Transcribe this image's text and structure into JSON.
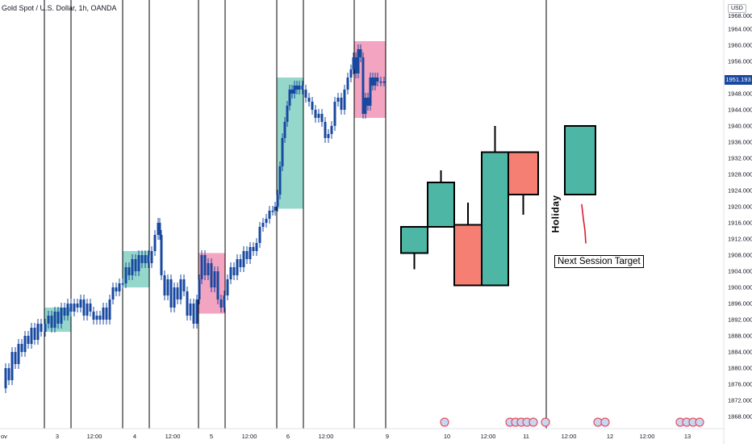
{
  "header": {
    "symbol_line": "Gold Spot / U.S. Dollar, 1h, OANDA",
    "currency": "USD"
  },
  "price_axis": {
    "last_price": "1951.193",
    "last_price_color": "#1848a0",
    "top_partial_label": "1968.000"
  },
  "annotations": {
    "holiday": "Holiday",
    "next_session_target": "Next Session Target"
  },
  "colors": {
    "bull_box": "#8fd6c8",
    "bear_box": "#f29fbd",
    "price_bars": "#1848a0",
    "projection_bull": "#4db6a5",
    "projection_bear": "#f57f73",
    "target_line": "#e01b2a"
  },
  "chart_data": {
    "type": "candlestick",
    "title": "Gold Spot / U.S. Dollar, 1h, OANDA",
    "ylim": [
      1867,
      1968
    ],
    "y_ticks": [
      1868,
      1872,
      1876,
      1880,
      1884,
      1888,
      1892,
      1896,
      1900,
      1904,
      1908,
      1912,
      1916,
      1920,
      1924,
      1928,
      1932,
      1936,
      1940,
      1944,
      1948,
      1952,
      1956,
      1960,
      1964
    ],
    "y_tick_labels": [
      "1868.000",
      "1872.000",
      "1876.000",
      "1880.000",
      "1884.000",
      "1888.000",
      "1892.000",
      "1896.000",
      "1900.000",
      "1904.000",
      "1908.000",
      "1912.000",
      "1916.000",
      "1920.000",
      "1924.000",
      "1928.000",
      "1932.000",
      "1936.000",
      "1940.000",
      "1944.000",
      "1948.000",
      "1952.000",
      "1956.000",
      "1960.000",
      "1964.000"
    ],
    "x_tick_labels": [
      "ov",
      "3",
      "12:00",
      "4",
      "12:00",
      "5",
      "12:00",
      "6",
      "12:00",
      "9",
      "10",
      "12:00",
      "11",
      "12:00",
      "12",
      "12:00",
      "13"
    ],
    "session_dividers": [
      55,
      88,
      152,
      185,
      246,
      279,
      343,
      376,
      439,
      478,
      677
    ],
    "session_boxes": [
      {
        "kind": "bull",
        "x0": 55,
        "x1": 88,
        "low": 1889,
        "high": 1895
      },
      {
        "kind": "bull",
        "x0": 152,
        "x1": 185,
        "low": 1900,
        "high": 1909
      },
      {
        "kind": "bear",
        "x0": 246,
        "x1": 279,
        "low": 1893.5,
        "high": 1908.5
      },
      {
        "kind": "bull",
        "x0": 343,
        "x1": 376,
        "low": 1919.5,
        "high": 1952
      },
      {
        "kind": "bear",
        "x0": 439,
        "x1": 478,
        "low": 1942,
        "high": 1961
      }
    ],
    "price_path": [
      [
        3,
        1875
      ],
      [
        7,
        1880
      ],
      [
        11,
        1877
      ],
      [
        15,
        1884
      ],
      [
        19,
        1881
      ],
      [
        23,
        1886
      ],
      [
        27,
        1884
      ],
      [
        31,
        1888
      ],
      [
        35,
        1886
      ],
      [
        39,
        1890
      ],
      [
        43,
        1887
      ],
      [
        47,
        1891
      ],
      [
        51,
        1889
      ],
      [
        56,
        1891
      ],
      [
        60,
        1893
      ],
      [
        64,
        1890
      ],
      [
        68,
        1894
      ],
      [
        72,
        1891
      ],
      [
        76,
        1895
      ],
      [
        80,
        1893
      ],
      [
        84,
        1896
      ],
      [
        88,
        1894
      ],
      [
        92,
        1896
      ],
      [
        96,
        1895
      ],
      [
        100,
        1897
      ],
      [
        104,
        1893
      ],
      [
        108,
        1896
      ],
      [
        112,
        1894
      ],
      [
        116,
        1892
      ],
      [
        120,
        1893
      ],
      [
        124,
        1892
      ],
      [
        128,
        1895
      ],
      [
        132,
        1892
      ],
      [
        136,
        1897
      ],
      [
        140,
        1900
      ],
      [
        144,
        1899
      ],
      [
        148,
        1901
      ],
      [
        152,
        1901
      ],
      [
        156,
        1905
      ],
      [
        160,
        1903
      ],
      [
        164,
        1907
      ],
      [
        168,
        1904
      ],
      [
        172,
        1908
      ],
      [
        176,
        1906
      ],
      [
        180,
        1908
      ],
      [
        184,
        1906
      ],
      [
        188,
        1909
      ],
      [
        192,
        1913
      ],
      [
        196,
        1916
      ],
      [
        198,
        1913
      ],
      [
        200,
        1903
      ],
      [
        204,
        1898
      ],
      [
        208,
        1902
      ],
      [
        212,
        1895
      ],
      [
        216,
        1900
      ],
      [
        220,
        1897
      ],
      [
        224,
        1902
      ],
      [
        228,
        1899
      ],
      [
        232,
        1893
      ],
      [
        236,
        1896
      ],
      [
        240,
        1891
      ],
      [
        244,
        1897
      ],
      [
        247,
        1902
      ],
      [
        250,
        1908
      ],
      [
        254,
        1903
      ],
      [
        258,
        1906
      ],
      [
        262,
        1900
      ],
      [
        266,
        1904
      ],
      [
        270,
        1897
      ],
      [
        274,
        1895
      ],
      [
        278,
        1898
      ],
      [
        282,
        1902
      ],
      [
        286,
        1905
      ],
      [
        290,
        1903
      ],
      [
        294,
        1907
      ],
      [
        298,
        1905
      ],
      [
        302,
        1909
      ],
      [
        306,
        1907
      ],
      [
        310,
        1910
      ],
      [
        314,
        1909
      ],
      [
        318,
        1911
      ],
      [
        322,
        1915
      ],
      [
        326,
        1916
      ],
      [
        330,
        1917
      ],
      [
        334,
        1919
      ],
      [
        338,
        1919
      ],
      [
        341,
        1920
      ],
      [
        344,
        1923
      ],
      [
        347,
        1930
      ],
      [
        350,
        1937
      ],
      [
        353,
        1941
      ],
      [
        356,
        1945
      ],
      [
        359,
        1949
      ],
      [
        362,
        1948
      ],
      [
        365,
        1950
      ],
      [
        368,
        1949
      ],
      [
        371,
        1950
      ],
      [
        375,
        1949
      ],
      [
        379,
        1947
      ],
      [
        383,
        1946
      ],
      [
        387,
        1944
      ],
      [
        391,
        1942
      ],
      [
        395,
        1943
      ],
      [
        399,
        1941
      ],
      [
        403,
        1937
      ],
      [
        407,
        1938
      ],
      [
        411,
        1940
      ],
      [
        415,
        1946
      ],
      [
        419,
        1947
      ],
      [
        423,
        1944
      ],
      [
        427,
        1949
      ],
      [
        431,
        1952
      ],
      [
        435,
        1954
      ],
      [
        438,
        1957
      ],
      [
        441,
        1953
      ],
      [
        444,
        1959
      ],
      [
        447,
        1957
      ],
      [
        450,
        1943
      ],
      [
        453,
        1947
      ],
      [
        456,
        1945
      ],
      [
        459,
        1952
      ],
      [
        462,
        1950
      ],
      [
        465,
        1952
      ],
      [
        468,
        1951
      ],
      [
        472,
        1951
      ],
      [
        476,
        1951
      ]
    ],
    "projection_candles": [
      {
        "x0": 497,
        "x1": 530,
        "open": 1908.5,
        "close": 1915,
        "high": 1915,
        "low": 1904.5,
        "dir": "up"
      },
      {
        "x0": 530,
        "x1": 563,
        "open": 1915,
        "close": 1926,
        "high": 1929,
        "low": 1915,
        "dir": "up"
      },
      {
        "x0": 563,
        "x1": 597,
        "open": 1915.5,
        "close": 1900.5,
        "high": 1921,
        "low": 1900.5,
        "dir": "down"
      },
      {
        "x0": 597,
        "x1": 630,
        "open": 1900.5,
        "close": 1933.5,
        "high": 1940,
        "low": 1900.5,
        "dir": "up"
      },
      {
        "x0": 630,
        "x1": 667,
        "open": 1933.5,
        "close": 1923,
        "high": 1933.5,
        "low": 1918,
        "dir": "down"
      },
      {
        "x0": 700,
        "x1": 738,
        "open": 1923,
        "close": 1940,
        "high": 1940,
        "low": 1923,
        "dir": "up"
      }
    ],
    "target_stroke": [
      [
        721,
        1920.5
      ],
      [
        723,
        1917
      ],
      [
        725,
        1914
      ],
      [
        726,
        1911
      ]
    ]
  }
}
